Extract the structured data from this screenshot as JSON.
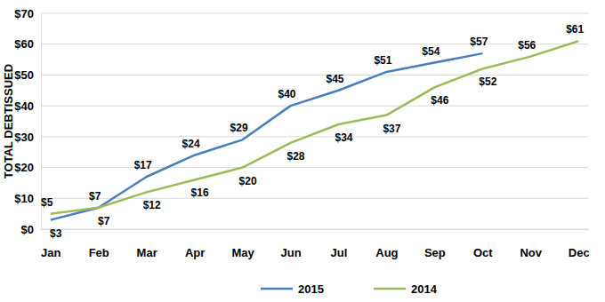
{
  "chart_data": {
    "type": "line",
    "y_label": "TOTAL DEBTISSUED",
    "categories": [
      "Jan",
      "Feb",
      "Mar",
      "Apr",
      "May",
      "Jun",
      "Jul",
      "Aug",
      "Sep",
      "Oct",
      "Nov",
      "Dec"
    ],
    "series": [
      {
        "name": "2015",
        "color": "#4a7ebb",
        "values": [
          3,
          7,
          17,
          24,
          29,
          40,
          45,
          51,
          54,
          57,
          null,
          null
        ],
        "value_labels": [
          "$3",
          "$7",
          "$17",
          "$24",
          "$29",
          "$40",
          "$45",
          "$51",
          "$54",
          "$57",
          null,
          null
        ]
      },
      {
        "name": "2014",
        "color": "#9bbb59",
        "values": [
          5,
          7,
          12,
          16,
          20,
          28,
          34,
          37,
          46,
          52,
          56,
          61
        ],
        "value_labels": [
          "$5",
          "$7",
          "$12",
          "$16",
          "$20",
          "$28",
          "$34",
          "$37",
          "$46",
          "$52",
          "$56",
          "$61"
        ]
      }
    ],
    "ylim": [
      0,
      70
    ],
    "yticks": [
      {
        "value": 0,
        "label": "$0"
      },
      {
        "value": 10,
        "label": "$10"
      },
      {
        "value": 20,
        "label": "$20"
      },
      {
        "value": 30,
        "label": "$30"
      },
      {
        "value": 40,
        "label": "$40"
      },
      {
        "value": 50,
        "label": "$50"
      },
      {
        "value": 60,
        "label": "$60"
      },
      {
        "value": 70,
        "label": "$70"
      }
    ],
    "grid": true,
    "data_labels": true,
    "legend": "bottom"
  }
}
